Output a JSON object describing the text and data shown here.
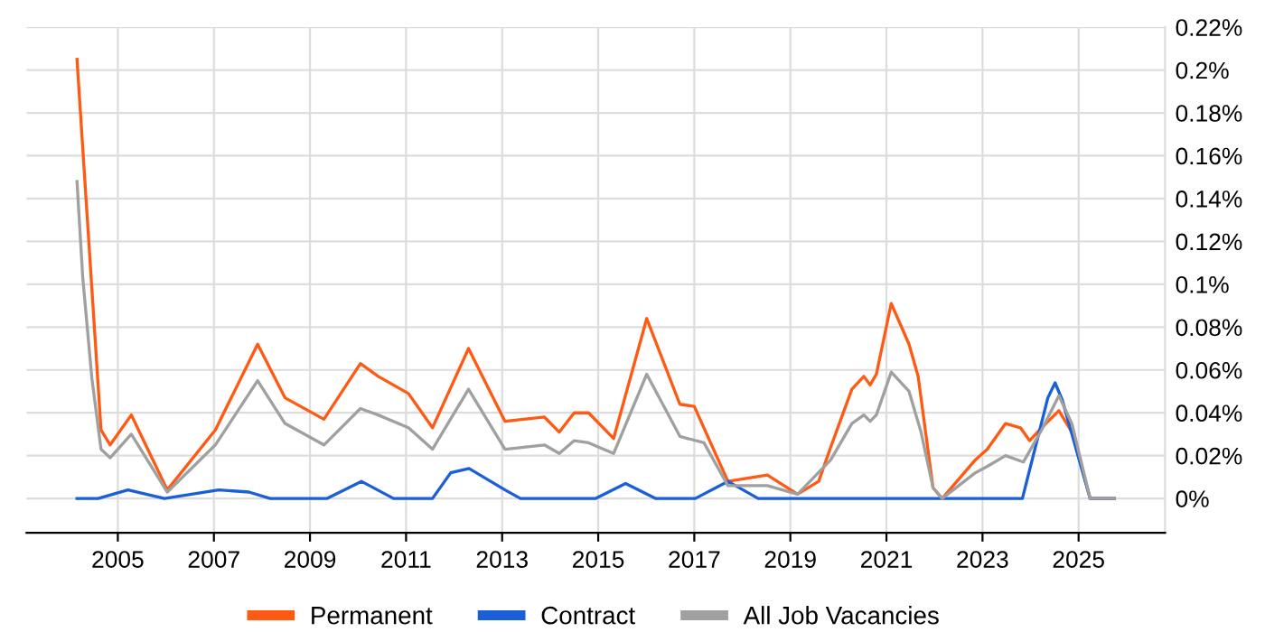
{
  "chart_data": {
    "type": "line",
    "series": [
      {
        "name": "Permanent",
        "color": "#ff5a14",
        "x": [
          2004.15,
          2004.65,
          2004.84,
          2005.28,
          2006.03,
          2007.03,
          2007.91,
          2008.48,
          2009.29,
          2010.05,
          2010.42,
          2011.05,
          2011.55,
          2012.3,
          2013.06,
          2013.88,
          2014.19,
          2014.5,
          2014.8,
          2015.32,
          2016.01,
          2016.7,
          2017.0,
          2017.7,
          2018.52,
          2019.15,
          2019.59,
          2019.84,
          2020.28,
          2020.53,
          2020.66,
          2020.79,
          2021.1,
          2021.47,
          2021.66,
          2021.97,
          2022.16,
          2022.85,
          2023.1,
          2023.48,
          2023.79,
          2023.98,
          2024.23,
          2024.59,
          2024.86,
          2025.24,
          2025.74
        ],
        "values": [
          0.205,
          0.032,
          0.025,
          0.039,
          0.004,
          0.032,
          0.072,
          0.047,
          0.037,
          0.063,
          0.057,
          0.049,
          0.033,
          0.07,
          0.036,
          0.038,
          0.031,
          0.04,
          0.04,
          0.028,
          0.084,
          0.044,
          0.043,
          0.008,
          0.011,
          0.002,
          0.008,
          0.024,
          0.051,
          0.057,
          0.053,
          0.058,
          0.091,
          0.072,
          0.057,
          0.005,
          0.0,
          0.018,
          0.023,
          0.035,
          0.033,
          0.027,
          0.033,
          0.041,
          0.031,
          0.0,
          0.0
        ]
      },
      {
        "name": "Contract",
        "color": "#1a5fd8",
        "x": [
          2004.15,
          2004.59,
          2005.21,
          2005.97,
          2007.1,
          2007.73,
          2008.17,
          2009.35,
          2010.07,
          2010.74,
          2011.24,
          2011.55,
          2011.93,
          2012.31,
          2013.06,
          2013.38,
          2014.94,
          2015.57,
          2016.2,
          2017.02,
          2017.7,
          2018.33,
          2023.83,
          2024.36,
          2024.51,
          2024.66,
          2025.24,
          2025.74
        ],
        "values": [
          0.0,
          0.0,
          0.004,
          0.0,
          0.004,
          0.003,
          0.0,
          0.0,
          0.008,
          0.0,
          0.0,
          0.0,
          0.012,
          0.014,
          0.004,
          0.0,
          0.0,
          0.007,
          0.0,
          0.0,
          0.008,
          0.0,
          0.0,
          0.047,
          0.054,
          0.046,
          0.0,
          0.0
        ]
      },
      {
        "name": "All Job Vacancies",
        "color": "#a0a0a0",
        "x": [
          2004.15,
          2004.27,
          2004.46,
          2004.65,
          2004.84,
          2005.28,
          2006.03,
          2007.03,
          2007.91,
          2008.48,
          2009.29,
          2010.05,
          2010.42,
          2011.05,
          2011.55,
          2012.3,
          2013.06,
          2013.88,
          2014.19,
          2014.5,
          2014.8,
          2015.32,
          2016.01,
          2016.7,
          2017.2,
          2017.7,
          2018.52,
          2019.15,
          2019.84,
          2020.28,
          2020.53,
          2020.66,
          2020.79,
          2021.1,
          2021.47,
          2021.72,
          2021.97,
          2022.16,
          2022.85,
          2023.1,
          2023.48,
          2023.85,
          2024.23,
          2024.59,
          2024.86,
          2025.24,
          2025.74
        ],
        "values": [
          0.148,
          0.103,
          0.056,
          0.023,
          0.019,
          0.03,
          0.003,
          0.025,
          0.055,
          0.035,
          0.025,
          0.042,
          0.039,
          0.033,
          0.023,
          0.051,
          0.023,
          0.025,
          0.021,
          0.027,
          0.026,
          0.021,
          0.058,
          0.029,
          0.026,
          0.006,
          0.006,
          0.002,
          0.018,
          0.035,
          0.039,
          0.036,
          0.039,
          0.059,
          0.05,
          0.031,
          0.005,
          0.0,
          0.012,
          0.015,
          0.02,
          0.017,
          0.032,
          0.048,
          0.035,
          0.0,
          0.0
        ]
      }
    ],
    "xlim": [
      2003.1,
      2026.8
    ],
    "xticks": [
      2005,
      2007,
      2009,
      2011,
      2013,
      2015,
      2017,
      2019,
      2021,
      2023,
      2025
    ],
    "ylim": [
      -0.016,
      0.22
    ],
    "yticks": [
      {
        "value": 0,
        "label": "0%"
      },
      {
        "value": 0.02,
        "label": "0.02%"
      },
      {
        "value": 0.04,
        "label": "0.04%"
      },
      {
        "value": 0.06,
        "label": "0.06%"
      },
      {
        "value": 0.08,
        "label": "0.08%"
      },
      {
        "value": 0.1,
        "label": "0.1%"
      },
      {
        "value": 0.12,
        "label": "0.12%"
      },
      {
        "value": 0.14,
        "label": "0.14%"
      },
      {
        "value": 0.16,
        "label": "0.16%"
      },
      {
        "value": 0.18,
        "label": "0.18%"
      },
      {
        "value": 0.2,
        "label": "0.2%"
      },
      {
        "value": 0.22,
        "label": "0.22%"
      }
    ],
    "grid": true,
    "legend": "bottom",
    "marker": "none",
    "line_style": "solid"
  }
}
